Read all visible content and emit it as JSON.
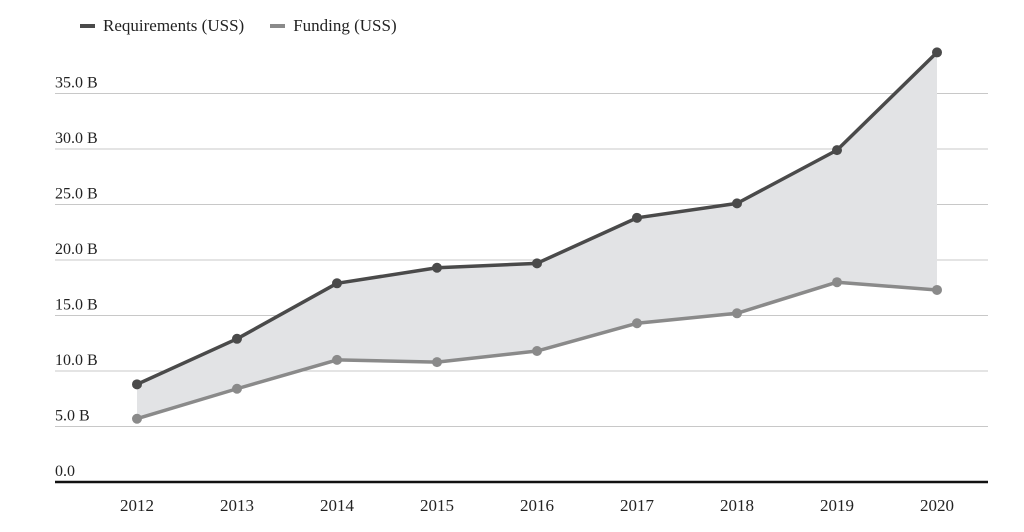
{
  "legend": {
    "items": [
      {
        "label": "Requirements (USS)",
        "color": "#4a4a4a"
      },
      {
        "label": "Funding (USS)",
        "color": "#8a8a8a"
      }
    ]
  },
  "chart_data": {
    "type": "line",
    "x": [
      "2012",
      "2013",
      "2014",
      "2015",
      "2016",
      "2017",
      "2018",
      "2019",
      "2020"
    ],
    "series": [
      {
        "name": "Requirements (USS)",
        "color": "#4a4a4a",
        "values": [
          8.8,
          12.9,
          17.9,
          19.3,
          19.7,
          23.8,
          25.1,
          29.9,
          38.7
        ]
      },
      {
        "name": "Funding (USS)",
        "color": "#8a8a8a",
        "values": [
          5.7,
          8.4,
          11.0,
          10.8,
          11.8,
          14.3,
          15.2,
          18.0,
          17.3
        ]
      }
    ],
    "yticks": [
      {
        "value": 0,
        "label": "0.0"
      },
      {
        "value": 5,
        "label": "5.0 B"
      },
      {
        "value": 10,
        "label": "10.0 B"
      },
      {
        "value": 15,
        "label": "15.0 B"
      },
      {
        "value": 20,
        "label": "20.0 B"
      },
      {
        "value": 25,
        "label": "25.0 B"
      },
      {
        "value": 30,
        "label": "30.0 B"
      },
      {
        "value": 35,
        "label": "35.0 B"
      }
    ],
    "ylim": [
      0,
      40
    ],
    "gap_fill_color": "#e2e3e5",
    "grid": true,
    "legend_position": "top-left"
  }
}
